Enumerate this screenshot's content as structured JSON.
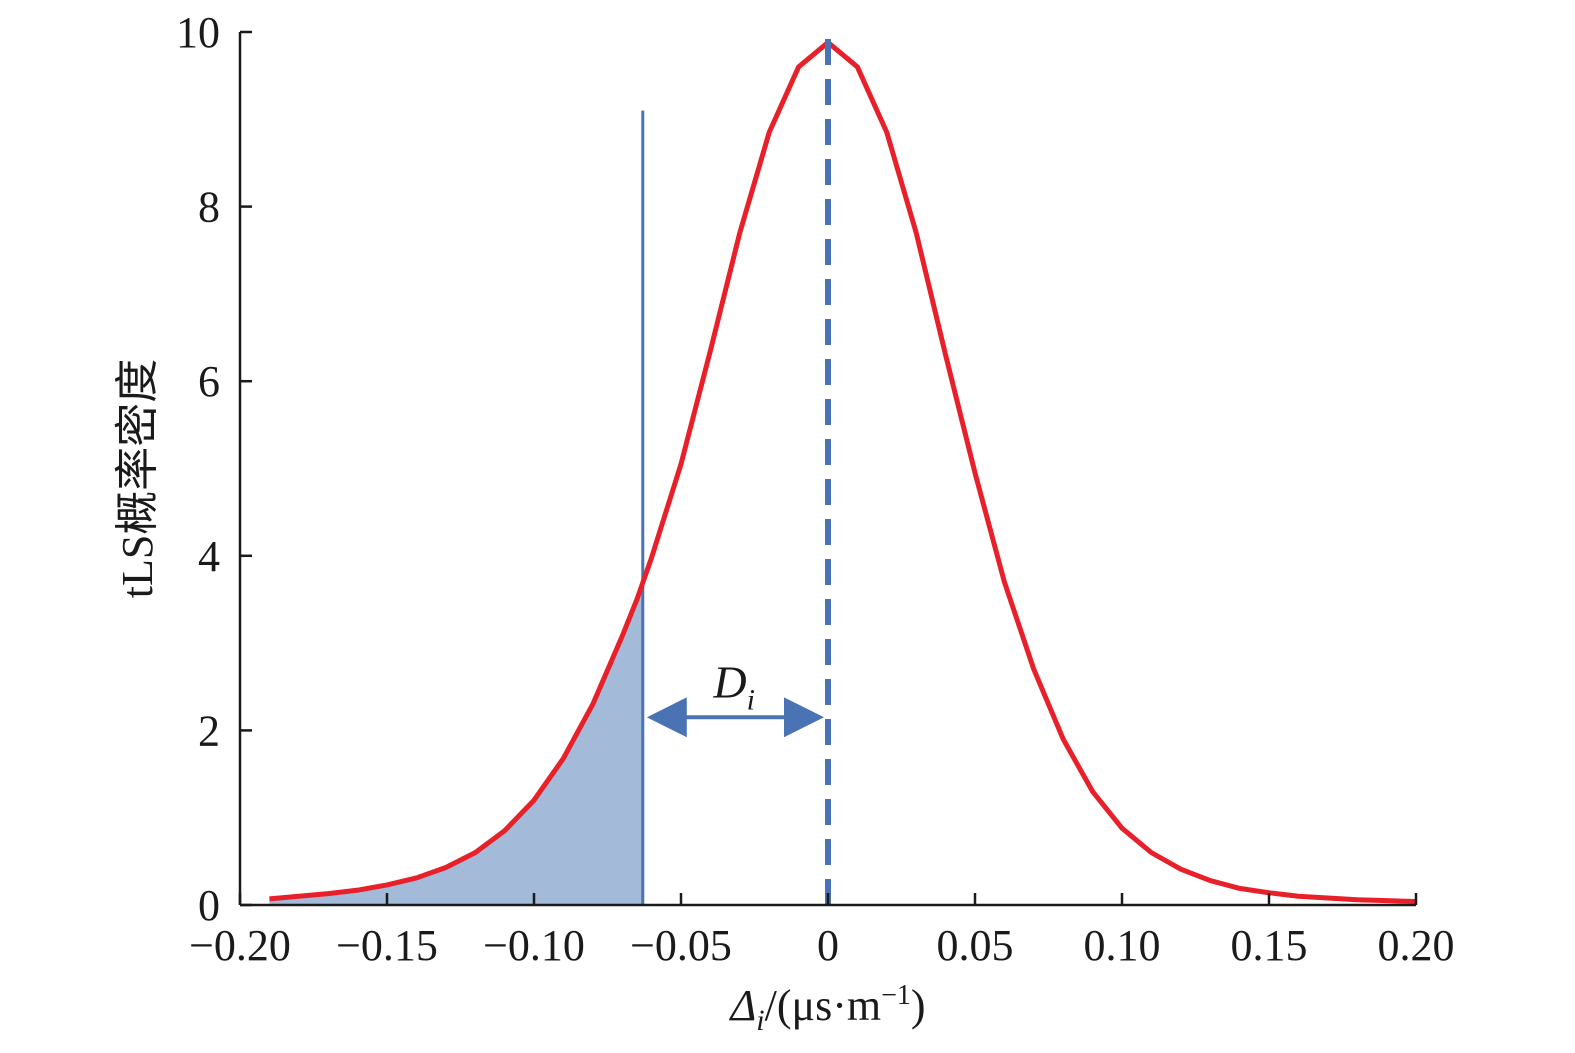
{
  "chart_data": {
    "type": "line",
    "title": "",
    "xlabel": {
      "symbol": "Δ",
      "sub": "i",
      "unit": "/(μs·m",
      "sup": "−1",
      "close": ")"
    },
    "ylabel": "tLS概率密度",
    "xlim": [
      -0.2,
      0.2
    ],
    "ylim": [
      0,
      10
    ],
    "x_ticks": [
      -0.2,
      -0.15,
      -0.1,
      -0.05,
      0,
      0.05,
      0.1,
      0.15,
      0.2
    ],
    "x_tick_labels": [
      "−0.20",
      "−0.15",
      "−0.10",
      "−0.05",
      "0",
      "0.05",
      "0.10",
      "0.15",
      "0.20"
    ],
    "y_ticks": [
      0,
      2,
      4,
      6,
      8,
      10
    ],
    "y_tick_labels": [
      "0",
      "2",
      "4",
      "6",
      "8",
      "10"
    ],
    "grid": false,
    "series": [
      {
        "color": "#e8202a",
        "x": [
          -0.19,
          -0.18,
          -0.17,
          -0.16,
          -0.15,
          -0.14,
          -0.13,
          -0.12,
          -0.11,
          -0.1,
          -0.09,
          -0.08,
          -0.07,
          -0.065,
          -0.06,
          -0.05,
          -0.04,
          -0.03,
          -0.02,
          -0.01,
          0,
          0.01,
          0.02,
          0.03,
          0.04,
          0.05,
          0.06,
          0.07,
          0.08,
          0.09,
          0.1,
          0.11,
          0.12,
          0.13,
          0.14,
          0.15,
          0.16,
          0.17,
          0.18,
          0.19,
          0.2
        ],
        "values": [
          0.07,
          0.1,
          0.13,
          0.17,
          0.23,
          0.31,
          0.43,
          0.6,
          0.85,
          1.2,
          1.68,
          2.3,
          3.08,
          3.5,
          3.98,
          5.05,
          6.35,
          7.7,
          8.85,
          9.6,
          9.88,
          9.6,
          8.85,
          7.7,
          6.3,
          4.95,
          3.7,
          2.7,
          1.9,
          1.3,
          0.88,
          0.6,
          0.41,
          0.28,
          0.19,
          0.14,
          0.1,
          0.08,
          0.06,
          0.05,
          0.04
        ]
      }
    ],
    "shaded_region": {
      "from": -0.19,
      "to": -0.063,
      "color": "#a3bad8"
    },
    "threshold_line": {
      "x": -0.063,
      "top": 9.1,
      "color": "#4a73b3"
    },
    "mean_line": {
      "x": 0,
      "style": "dashed",
      "color": "#4a73b3"
    },
    "annotation": {
      "label": "D",
      "sub": "i",
      "from": -0.063,
      "to": 0,
      "y": 2.15
    }
  }
}
